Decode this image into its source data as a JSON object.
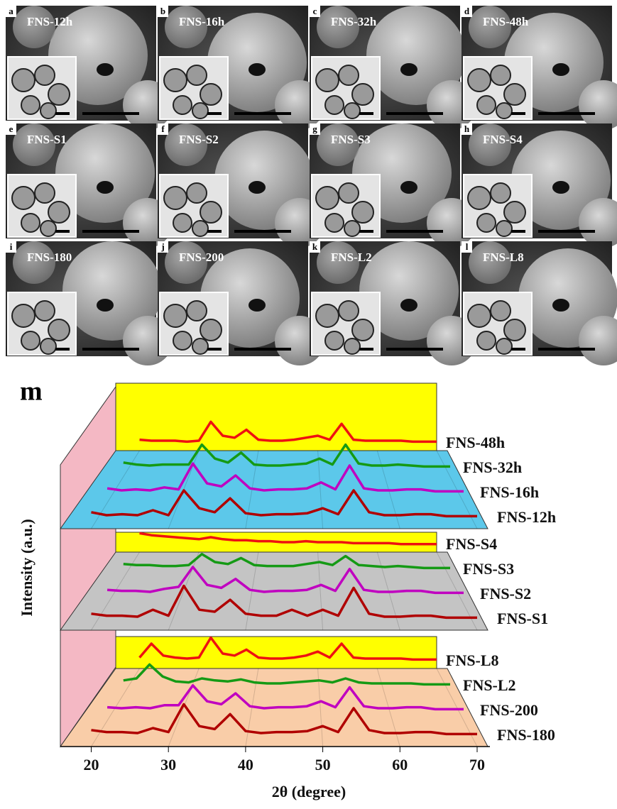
{
  "panels": [
    {
      "letter": "a",
      "label": "FNS-12h"
    },
    {
      "letter": "b",
      "label": "FNS-16h"
    },
    {
      "letter": "c",
      "label": "FNS-32h"
    },
    {
      "letter": "d",
      "label": "FNS-48h"
    },
    {
      "letter": "e",
      "label": "FNS-S1"
    },
    {
      "letter": "f",
      "label": "FNS-S2"
    },
    {
      "letter": "g",
      "label": "FNS-S3"
    },
    {
      "letter": "h",
      "label": "FNS-S4"
    },
    {
      "letter": "i",
      "label": "FNS-180"
    },
    {
      "letter": "j",
      "label": "FNS-200"
    },
    {
      "letter": "k",
      "label": "FNS-L2"
    },
    {
      "letter": "l",
      "label": "FNS-L8"
    }
  ],
  "chart_data": {
    "type": "line",
    "panel_letter": "m",
    "xlabel": "2θ (degree)",
    "ylabel": "Intensity (a.u.)",
    "xlim": [
      16,
      70
    ],
    "xticks": [
      20,
      30,
      40,
      50,
      60,
      70
    ],
    "x": [
      20,
      22,
      24,
      26,
      28,
      30,
      32,
      34,
      36,
      38,
      40,
      42,
      44,
      46,
      48,
      50,
      52,
      54,
      56,
      58,
      60,
      62,
      64,
      66,
      68,
      70
    ],
    "groups": [
      {
        "series": [
          {
            "name": "FNS-12h",
            "color": "#b00000",
            "values": [
              8,
              5,
              6,
              5,
              10,
              5,
              30,
              12,
              8,
              22,
              7,
              5,
              6,
              6,
              7,
              12,
              6,
              30,
              8,
              5,
              5,
              6,
              6,
              4,
              4,
              4
            ]
          },
          {
            "name": "FNS-16h",
            "color": "#c000c0",
            "values": [
              7,
              5,
              6,
              5,
              8,
              6,
              32,
              12,
              9,
              20,
              7,
              5,
              6,
              6,
              7,
              13,
              6,
              30,
              7,
              5,
              5,
              6,
              6,
              4,
              4,
              4
            ]
          },
          {
            "name": "FNS-32h",
            "color": "#159a15",
            "values": [
              8,
              6,
              5,
              6,
              6,
              6,
              26,
              12,
              8,
              18,
              6,
              5,
              5,
              6,
              7,
              12,
              6,
              26,
              7,
              5,
              5,
              6,
              5,
              4,
              4,
              4
            ]
          },
          {
            "name": "FNS-48h",
            "color": "#ee1111",
            "values": [
              6,
              5,
              5,
              5,
              4,
              5,
              24,
              10,
              8,
              16,
              6,
              5,
              5,
              6,
              8,
              10,
              6,
              22,
              6,
              5,
              5,
              5,
              5,
              4,
              4,
              4
            ]
          }
        ]
      },
      {
        "series": [
          {
            "name": "FNS-S1",
            "color": "#b00000",
            "values": [
              8,
              6,
              6,
              5,
              12,
              6,
              36,
              12,
              10,
              22,
              8,
              6,
              6,
              12,
              6,
              12,
              6,
              34,
              8,
              5,
              5,
              6,
              6,
              4,
              4,
              4
            ]
          },
          {
            "name": "FNS-S2",
            "color": "#c000c0",
            "values": [
              7,
              6,
              6,
              5,
              8,
              10,
              30,
              12,
              9,
              18,
              7,
              5,
              6,
              6,
              7,
              12,
              6,
              28,
              7,
              5,
              5,
              6,
              6,
              4,
              4,
              4
            ]
          },
          {
            "name": "FNS-S3",
            "color": "#159a15",
            "values": [
              8,
              7,
              7,
              6,
              6,
              7,
              18,
              10,
              8,
              14,
              7,
              6,
              6,
              6,
              8,
              10,
              7,
              16,
              7,
              6,
              5,
              6,
              5,
              4,
              4,
              4
            ]
          },
          {
            "name": "FNS-S4",
            "color": "#ee1111",
            "values": [
              14,
              12,
              11,
              10,
              9,
              8,
              10,
              8,
              7,
              7,
              6,
              6,
              5,
              5,
              6,
              5,
              5,
              5,
              4,
              4,
              4,
              4,
              3,
              3,
              3,
              3
            ]
          }
        ]
      },
      {
        "series": [
          {
            "name": "FNS-180",
            "color": "#b00000",
            "values": [
              8,
              6,
              6,
              5,
              10,
              6,
              34,
              12,
              9,
              24,
              7,
              5,
              6,
              6,
              7,
              12,
              6,
              30,
              8,
              5,
              5,
              6,
              6,
              4,
              4,
              4
            ]
          },
          {
            "name": "FNS-200",
            "color": "#c000c0",
            "values": [
              6,
              5,
              6,
              5,
              8,
              8,
              28,
              12,
              9,
              20,
              7,
              5,
              6,
              6,
              7,
              12,
              6,
              26,
              7,
              5,
              5,
              6,
              6,
              4,
              4,
              4
            ]
          },
          {
            "name": "FNS-L2",
            "color": "#159a15",
            "values": [
              8,
              10,
              24,
              12,
              7,
              6,
              10,
              8,
              7,
              9,
              6,
              5,
              5,
              6,
              7,
              8,
              6,
              10,
              6,
              5,
              5,
              5,
              5,
              4,
              4,
              4
            ]
          },
          {
            "name": "FNS-L8",
            "color": "#ee1111",
            "values": [
              6,
              20,
              8,
              6,
              5,
              6,
              26,
              10,
              8,
              14,
              6,
              5,
              5,
              6,
              8,
              12,
              6,
              20,
              6,
              5,
              5,
              5,
              5,
              4,
              4,
              4
            ]
          }
        ]
      }
    ]
  }
}
